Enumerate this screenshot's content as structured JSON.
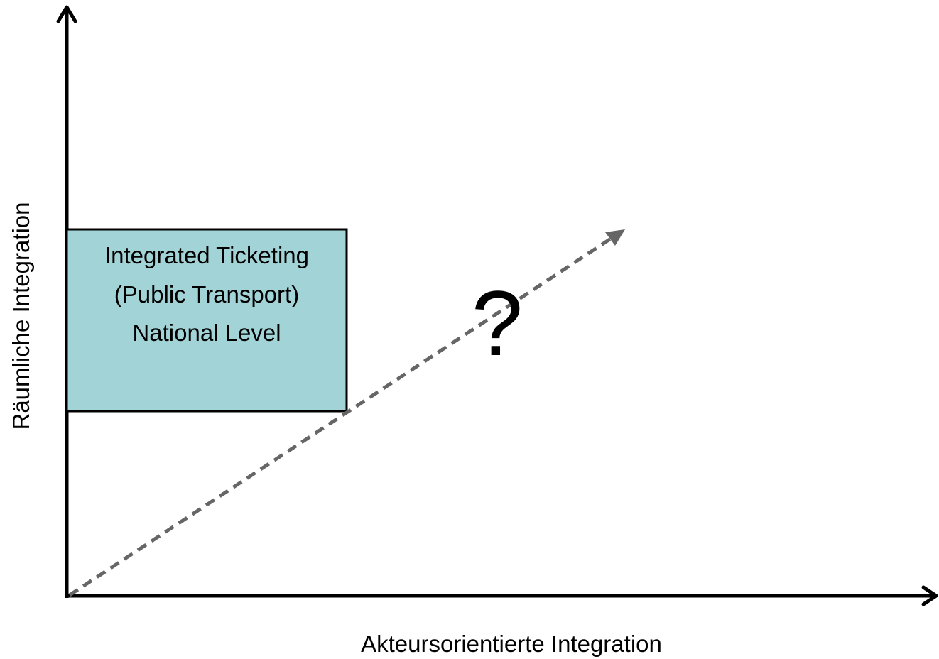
{
  "axes": {
    "x_label": "Akteursorientierte Integration",
    "y_label": "Räumliche Integration"
  },
  "box": {
    "lines": [
      "Integrated Ticketing",
      "(Public Transport)",
      "National Level"
    ],
    "fill_color": "#a2d3d6"
  },
  "question_mark": "?",
  "colors": {
    "axis": "#000000",
    "dashed_arrow": "#666666"
  }
}
